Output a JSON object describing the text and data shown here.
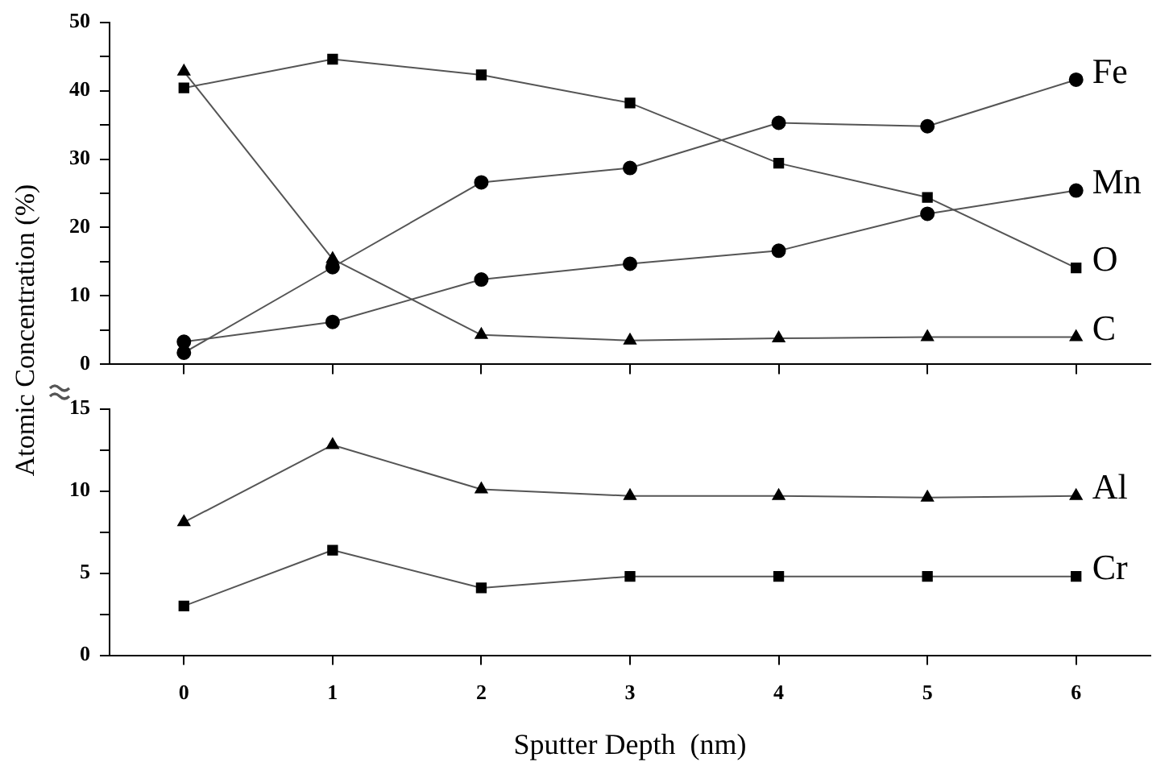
{
  "chart_data": [
    {
      "type": "line",
      "ylabel": "Atomic Concentration (%)",
      "x": [
        0,
        1,
        2,
        3,
        4,
        5,
        6
      ],
      "xlim": [
        -0.5,
        6.5
      ],
      "xticks": [
        0,
        1,
        2,
        3,
        4,
        5,
        6
      ],
      "ylim": [
        0,
        50
      ],
      "yticks": [
        0,
        {
          "value": 5,
          "label": null
        },
        10,
        {
          "value": 15,
          "label": null
        },
        20,
        {
          "value": 25,
          "label": null
        },
        30,
        {
          "value": 35,
          "label": null
        },
        40,
        {
          "value": 45,
          "label": null
        },
        50
      ],
      "tick_labels": "y",
      "grid": false,
      "legend": false,
      "line_style": "solid",
      "series": [
        {
          "name": "Fe",
          "color": "#000000",
          "marker": "circle",
          "values": [
            1.7,
            14.2,
            26.6,
            28.7,
            35.3,
            34.8,
            41.6
          ]
        },
        {
          "name": "Mn",
          "color": "#000000",
          "marker": "circle",
          "values": [
            3.3,
            6.2,
            12.4,
            14.7,
            16.6,
            22.0,
            25.4
          ]
        },
        {
          "name": "O",
          "color": "#000000",
          "marker": "square",
          "values": [
            40.4,
            44.6,
            42.3,
            38.2,
            29.4,
            24.4,
            14.1
          ]
        },
        {
          "name": "C",
          "color": "#000000",
          "marker": "triangle",
          "values": [
            42.8,
            15.4,
            4.3,
            3.5,
            3.8,
            4.0,
            4.0
          ]
        }
      ]
    },
    {
      "type": "line",
      "xlabel": "Sputter Depth  (nm)",
      "x": [
        0,
        1,
        2,
        3,
        4,
        5,
        6
      ],
      "xlim": [
        -0.5,
        6.5
      ],
      "xticks": [
        0,
        1,
        2,
        3,
        4,
        5,
        6
      ],
      "ylim": [
        0,
        15
      ],
      "yticks": [
        0,
        {
          "value": 2.5,
          "label": null
        },
        5,
        {
          "value": 7.5,
          "label": null
        },
        10,
        {
          "value": 12.5,
          "label": null
        },
        15
      ],
      "grid": false,
      "legend": false,
      "line_style": "solid",
      "series": [
        {
          "name": "Al",
          "color": "#000000",
          "marker": "triangle",
          "values": [
            8.1,
            12.8,
            10.1,
            9.7,
            9.7,
            9.6,
            9.7
          ]
        },
        {
          "name": "Cr",
          "color": "#000000",
          "marker": "square",
          "values": [
            3.0,
            6.4,
            4.1,
            4.8,
            4.8,
            4.8,
            4.8
          ]
        }
      ]
    }
  ]
}
